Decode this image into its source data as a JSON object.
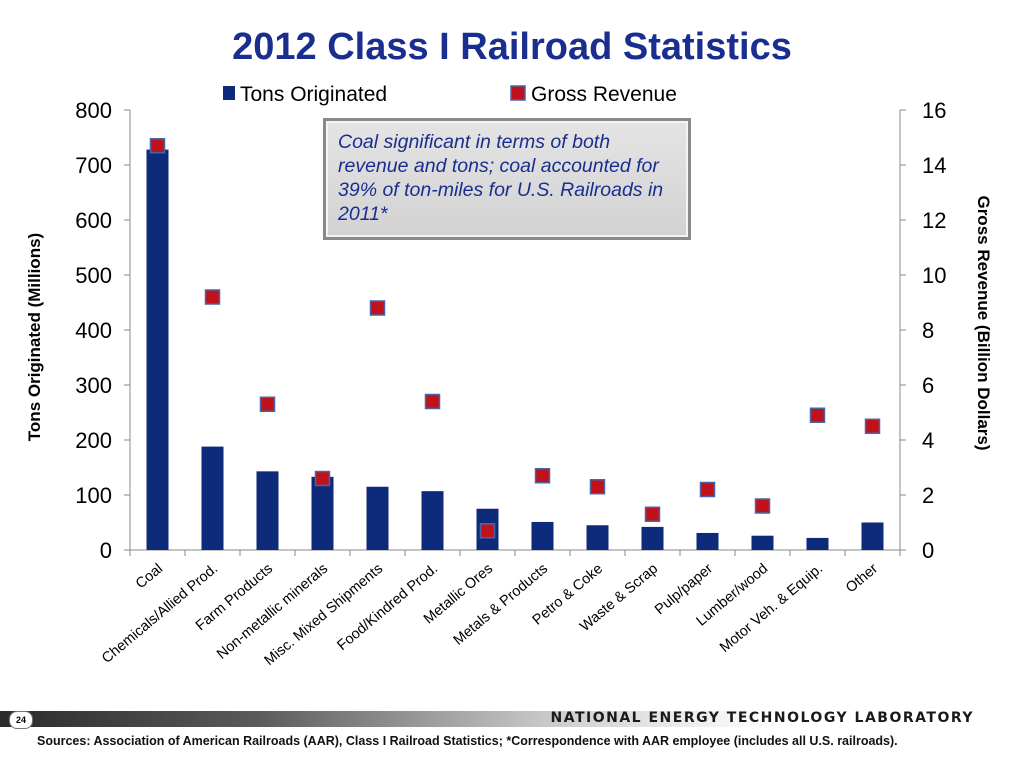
{
  "title": "2012 Class I Railroad Statistics",
  "callout": "Coal significant in terms of both revenue and tons; coal accounted for 39% of ton-miles for U.S. Railroads in 2011*",
  "footer": {
    "page_number": "24",
    "organization": "NATIONAL ENERGY TECHNOLOGY LABORATORY",
    "sources": "Sources: Association of American Railroads (AAR), Class I Railroad Statistics; *Correspondence with AAR employee (includes all U.S. railroads)."
  },
  "colors": {
    "title": "#1a2e8f",
    "bar": "#0e2a7a",
    "marker": "#c0121a",
    "marker_border": "#4b64a8"
  },
  "chart_data": {
    "type": "bar",
    "categories": [
      "Coal",
      "Chemicals/Allied Prod.",
      "Farm Products",
      "Non-metallic minerals",
      "Misc. Mixed Shipments",
      "Food/Kindred Prod.",
      "Metallic Ores",
      "Metals & Products",
      "Petro & Coke",
      "Waste & Scrap",
      "Pulp/paper",
      "Lumber/wood",
      "Motor Veh. & Equip.",
      "Other"
    ],
    "series": [
      {
        "name": "Tons Originated",
        "type": "bar",
        "axis": "left",
        "values": [
          728,
          188,
          143,
          133,
          115,
          107,
          75,
          51,
          45,
          42,
          31,
          26,
          22,
          50
        ]
      },
      {
        "name": "Gross Revenue",
        "type": "scatter",
        "axis": "right",
        "values": [
          14.7,
          9.2,
          5.3,
          2.6,
          8.8,
          5.4,
          0.7,
          2.7,
          2.3,
          1.3,
          2.2,
          1.6,
          4.9,
          4.5
        ]
      }
    ],
    "ylabel": "Tons Originated (Millions)",
    "y2label": "Gross Revenue (Billion Dollars)",
    "ylim": [
      0,
      800
    ],
    "y2lim": [
      0,
      16
    ],
    "yticks": [
      "0",
      "100",
      "200",
      "300",
      "400",
      "500",
      "600",
      "700",
      "800"
    ],
    "y2ticks": [
      "0",
      "2",
      "4",
      "6",
      "8",
      "10",
      "12",
      "14",
      "16"
    ],
    "legend_position": "top",
    "grid": false
  }
}
